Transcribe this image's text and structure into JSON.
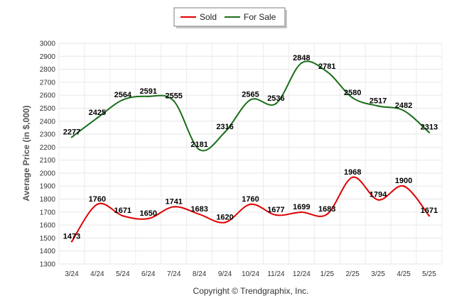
{
  "legend": {
    "sold_label": "Sold",
    "for_sale_label": "For Sale"
  },
  "footer": {
    "copyright": "Copyright © Trendgraphix, Inc."
  },
  "chart_data": {
    "type": "line",
    "ylabel": "Average Price (in $,000)",
    "xlabel": "",
    "title": "",
    "ylim": [
      1300,
      3000
    ],
    "yticks": [
      1300,
      1400,
      1500,
      1600,
      1700,
      1800,
      1900,
      2000,
      2100,
      2200,
      2300,
      2400,
      2500,
      2600,
      2700,
      2800,
      2900,
      3000
    ],
    "grid": true,
    "legend_position": "top-center",
    "categories": [
      "3/24",
      "4/24",
      "5/24",
      "6/24",
      "7/24",
      "8/24",
      "9/24",
      "10/24",
      "11/24",
      "12/24",
      "1/25",
      "2/25",
      "3/25",
      "4/25",
      "5/25"
    ],
    "series": [
      {
        "name": "Sold",
        "color": "#e00000",
        "values": [
          1473,
          1760,
          1671,
          1650,
          1741,
          1683,
          1620,
          1760,
          1677,
          1699,
          1683,
          1968,
          1794,
          1900,
          1671
        ]
      },
      {
        "name": "For Sale",
        "color": "#1a6e1a",
        "values": [
          2277,
          2425,
          2564,
          2591,
          2555,
          2181,
          2316,
          2565,
          2536,
          2848,
          2781,
          2580,
          2517,
          2482,
          2313
        ]
      }
    ]
  }
}
